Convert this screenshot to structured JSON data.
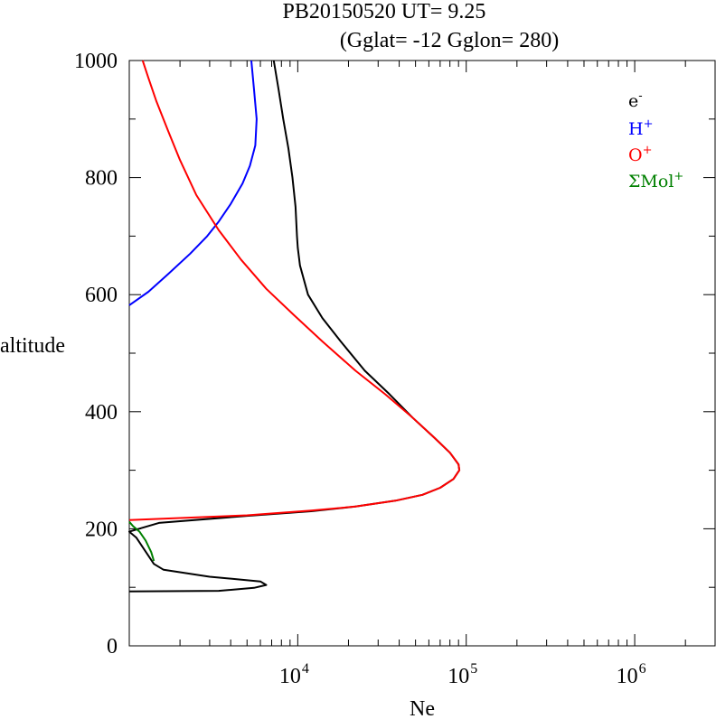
{
  "chart_data": {
    "type": "line",
    "title_line1": "PB20150520   UT=  9.25",
    "title_line2": "(Gglat= -12   Gglon=  280)",
    "xlabel": "Ne",
    "ylabel": "altitude",
    "x_scale": "log",
    "xlim": [
      1000,
      3000000
    ],
    "ylim": [
      0,
      1000
    ],
    "x_ticks": [
      {
        "value": 10000,
        "base": "10",
        "exp": "4"
      },
      {
        "value": 100000,
        "base": "10",
        "exp": "5"
      },
      {
        "value": 1000000,
        "base": "10",
        "exp": "6"
      }
    ],
    "y_ticks": [
      {
        "value": 0,
        "label": "0"
      },
      {
        "value": 200,
        "label": "200"
      },
      {
        "value": 400,
        "label": "400"
      },
      {
        "value": 600,
        "label": "600"
      },
      {
        "value": 800,
        "label": "800"
      },
      {
        "value": 1000,
        "label": "1000"
      }
    ],
    "legend_position": "top-right",
    "series": [
      {
        "name": "e",
        "sup": "-",
        "color": "#000000",
        "points": [
          [
            1000,
            93
          ],
          [
            3400,
            94
          ],
          [
            5500,
            99
          ],
          [
            6500,
            104
          ],
          [
            6000,
            110
          ],
          [
            3000,
            118
          ],
          [
            1600,
            130
          ],
          [
            1400,
            140
          ],
          [
            1100,
            185
          ],
          [
            1000,
            195
          ],
          [
            1500,
            210
          ],
          [
            5000,
            222
          ],
          [
            12000,
            230
          ],
          [
            22000,
            238
          ],
          [
            38000,
            248
          ],
          [
            55000,
            258
          ],
          [
            70000,
            270
          ],
          [
            84000,
            285
          ],
          [
            91000,
            300
          ],
          [
            90000,
            310
          ],
          [
            80000,
            330
          ],
          [
            65000,
            355
          ],
          [
            48000,
            390
          ],
          [
            35000,
            430
          ],
          [
            25000,
            470
          ],
          [
            18000,
            520
          ],
          [
            14000,
            560
          ],
          [
            11500,
            600
          ],
          [
            10300,
            650
          ],
          [
            10000,
            680
          ],
          [
            9900,
            700
          ],
          [
            9700,
            750
          ],
          [
            9300,
            800
          ],
          [
            8800,
            850
          ],
          [
            8200,
            900
          ],
          [
            7700,
            950
          ],
          [
            7200,
            1000
          ]
        ]
      },
      {
        "name": "H",
        "sup": "+",
        "color": "#0000ff",
        "points": [
          [
            1000,
            582
          ],
          [
            1300,
            605
          ],
          [
            1700,
            635
          ],
          [
            2300,
            670
          ],
          [
            2900,
            700
          ],
          [
            3400,
            725
          ],
          [
            4000,
            755
          ],
          [
            4700,
            790
          ],
          [
            5200,
            820
          ],
          [
            5600,
            855
          ],
          [
            5700,
            900
          ],
          [
            5500,
            950
          ],
          [
            5300,
            1000
          ]
        ]
      },
      {
        "name": "O",
        "sup": "+",
        "color": "#ff0000",
        "points": [
          [
            1000,
            215
          ],
          [
            5000,
            223
          ],
          [
            12000,
            231
          ],
          [
            22000,
            238
          ],
          [
            38000,
            248
          ],
          [
            55000,
            258
          ],
          [
            70000,
            270
          ],
          [
            84000,
            285
          ],
          [
            91000,
            300
          ],
          [
            90000,
            310
          ],
          [
            80000,
            330
          ],
          [
            65000,
            355
          ],
          [
            48000,
            390
          ],
          [
            33000,
            430
          ],
          [
            22000,
            470
          ],
          [
            14000,
            520
          ],
          [
            9500,
            565
          ],
          [
            6500,
            610
          ],
          [
            4600,
            660
          ],
          [
            3400,
            710
          ],
          [
            2500,
            770
          ],
          [
            2000,
            830
          ],
          [
            1700,
            880
          ],
          [
            1450,
            930
          ],
          [
            1300,
            970
          ],
          [
            1200,
            1000
          ]
        ]
      },
      {
        "name": "ΣMol",
        "sup": "+",
        "color": "#008000",
        "points": [
          [
            1000,
            212
          ],
          [
            1050,
            205
          ],
          [
            1150,
            195
          ],
          [
            1250,
            180
          ],
          [
            1350,
            160
          ],
          [
            1400,
            145
          ]
        ]
      }
    ]
  }
}
